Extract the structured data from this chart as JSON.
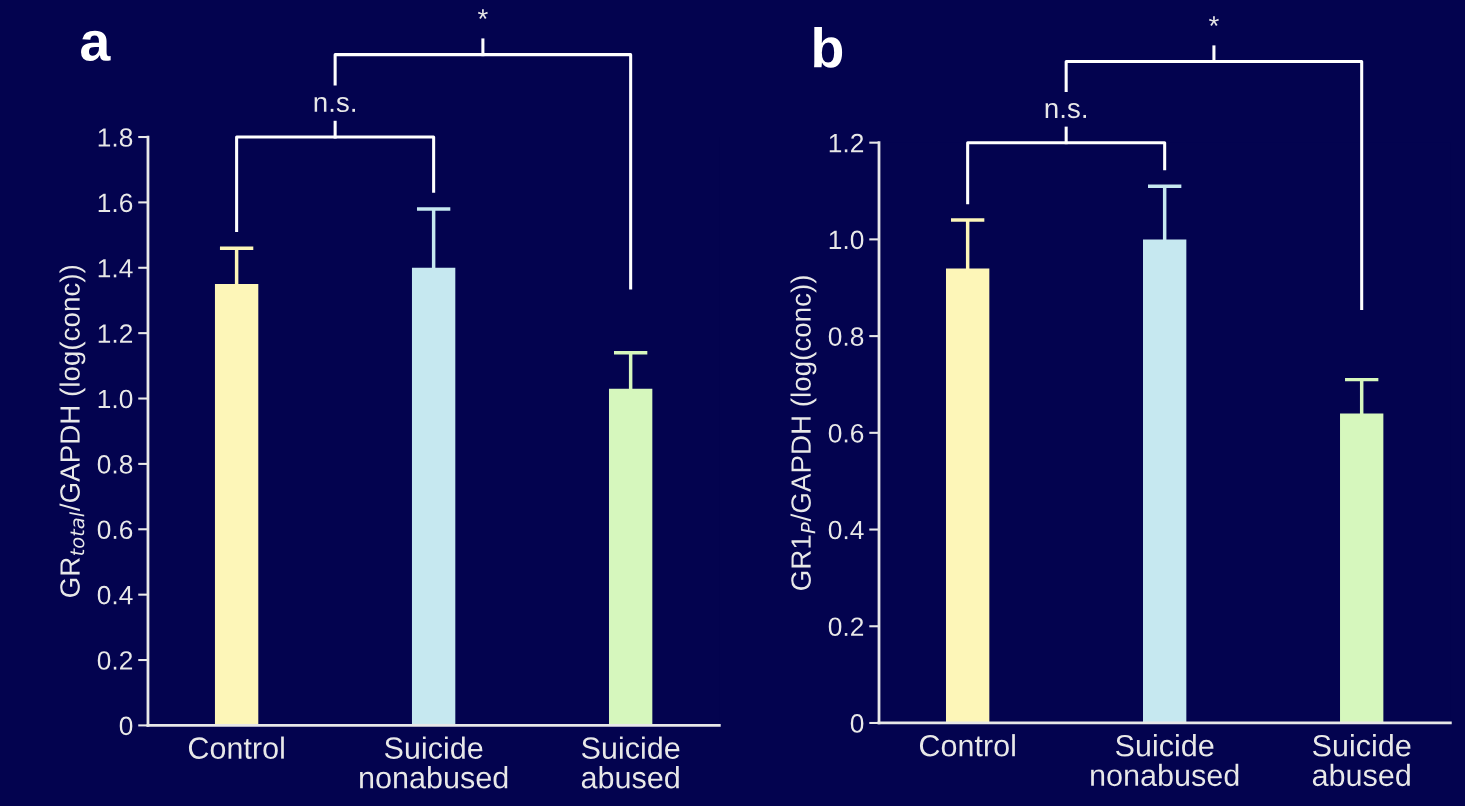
{
  "chart_data": [
    {
      "type": "bar",
      "title": "a",
      "ylabel": "GR$_{total}$/GAPDH (log(conc))",
      "categories": [
        "Control",
        "Suicide\nnonabused",
        "Suicide\nabused"
      ],
      "values": [
        1.35,
        1.4,
        1.03
      ],
      "colors": [
        "#fdf6b8",
        "#c6e8f0",
        "#d6f7bd"
      ],
      "errors": [
        0.11,
        0.18,
        0.11
      ],
      "ylim": [
        0,
        1.8
      ],
      "yticks": [
        0,
        0.2,
        0.4,
        0.6,
        0.8,
        {
          "value": 1,
          "label": "1.0"
        },
        1.2,
        1.4,
        1.6,
        1.8
      ],
      "annotations": [
        "n.s.",
        "*"
      ],
      "grid": false,
      "legend": false
    },
    {
      "type": "bar",
      "title": "b",
      "ylabel": "GR1$_{P}$/GAPDH (log(conc))",
      "categories": [
        "Control",
        "Suicide\nnonabused",
        "Suicide\nabused"
      ],
      "values": [
        0.94,
        1.0,
        0.64
      ],
      "colors": [
        "#fdf6b8",
        "#c6e8f0",
        "#d6f7bd"
      ],
      "errors": [
        0.1,
        0.11,
        0.07
      ],
      "ylim": [
        0,
        1.2
      ],
      "yticks": [
        0,
        0.2,
        0.4,
        0.6,
        0.8,
        {
          "value": 1,
          "label": "1.0"
        },
        1.2
      ],
      "annotations": [
        "n.s.",
        "*"
      ],
      "grid": false,
      "legend": false
    }
  ]
}
